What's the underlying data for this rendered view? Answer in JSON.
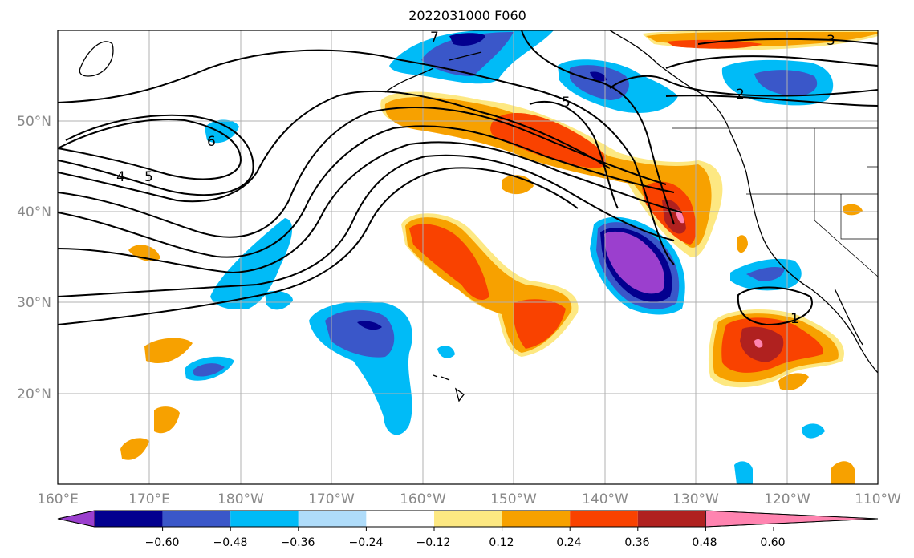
{
  "title": "2022031000 F060",
  "longitude_ticks": [
    "160°E",
    "170°E",
    "180°W",
    "170°W",
    "160°W",
    "150°W",
    "140°W",
    "130°W",
    "120°W",
    "110°W"
  ],
  "latitude_ticks": [
    "50°N",
    "40°N",
    "30°N",
    "20°N"
  ],
  "colorbar": {
    "ticks": [
      "−0.60",
      "−0.48",
      "−0.36",
      "−0.24",
      "−0.12",
      "0.12",
      "0.24",
      "0.36",
      "0.48",
      "0.60"
    ],
    "colors": [
      "#9b3fce",
      "#03008f",
      "#3a57c9",
      "#00bbf7",
      "#afdcfa",
      "#ffffff",
      "#fde882",
      "#f7a100",
      "#f94200",
      "#b0211f",
      "#ff84b0"
    ]
  },
  "contour_labels": [
    "6",
    "5",
    "4",
    "5",
    "2",
    "3",
    "1",
    "7"
  ],
  "colors": {
    "grid": "#b0b0b0",
    "tick_text": "#888888"
  }
}
